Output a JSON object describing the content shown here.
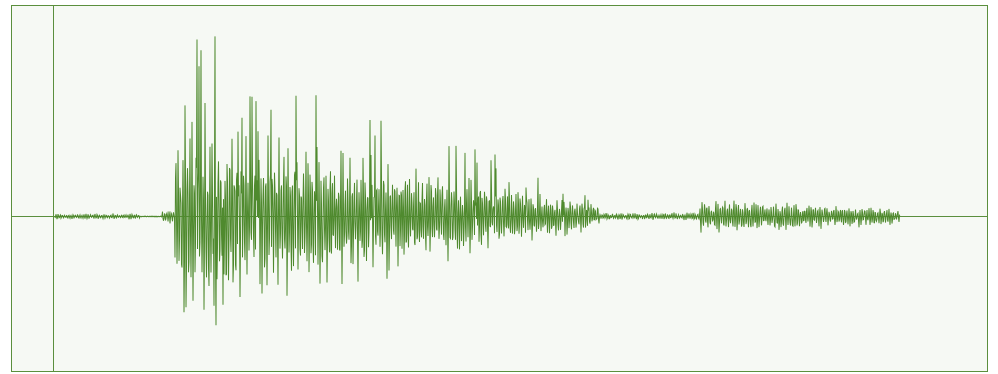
{
  "waveform_view": {
    "colors": {
      "background": "#f6f9f4",
      "border": "#5b8f3d",
      "axis": "#5b8f3d",
      "waveform": "#4f8a2e",
      "page": "#ffffff"
    },
    "cursor": {
      "visible": true
    }
  }
}
